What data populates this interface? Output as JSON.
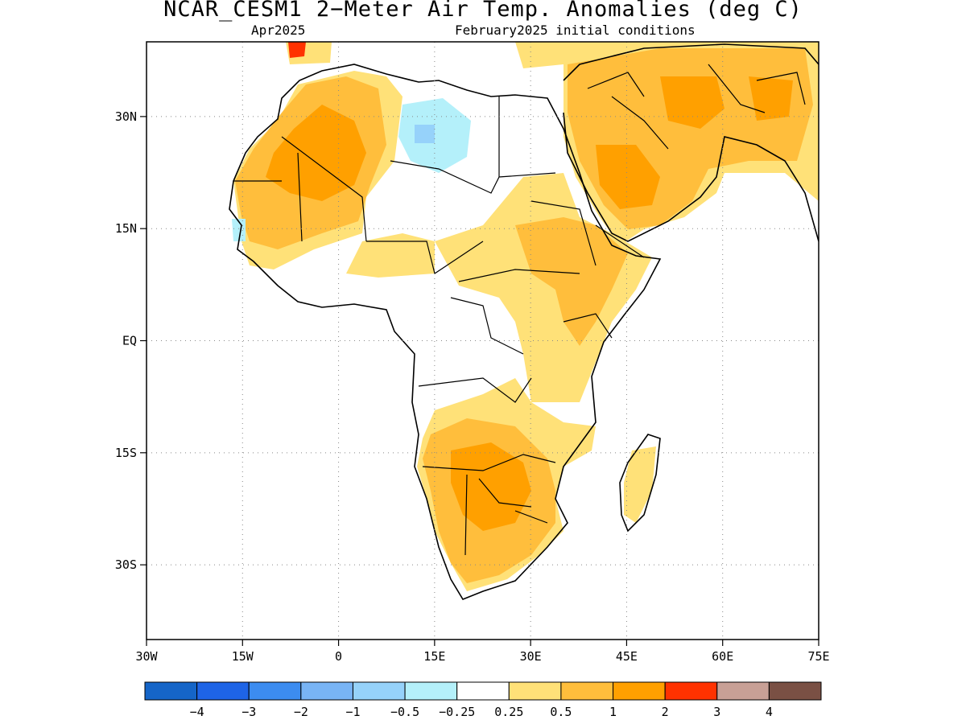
{
  "title": "NCAR_CESM1 2−Meter Air Temp. Anomalies (deg C)",
  "subtitle_left": "Apr2025",
  "subtitle_right": "February2025 initial conditions",
  "map": {
    "lon_range": [
      -30,
      75
    ],
    "lat_range": [
      -40,
      40
    ],
    "lat_ticks": [
      {
        "value": 30,
        "label": "30N"
      },
      {
        "value": 15,
        "label": "15N"
      },
      {
        "value": 0,
        "label": "EQ"
      },
      {
        "value": -15,
        "label": "15S"
      },
      {
        "value": -30,
        "label": "30S"
      }
    ],
    "lon_ticks": [
      {
        "value": -30,
        "label": "30W"
      },
      {
        "value": -15,
        "label": "15W"
      },
      {
        "value": 0,
        "label": "0"
      },
      {
        "value": 15,
        "label": "15E"
      },
      {
        "value": 30,
        "label": "30E"
      },
      {
        "value": 45,
        "label": "45E"
      },
      {
        "value": 60,
        "label": "60E"
      },
      {
        "value": 75,
        "label": "75E"
      }
    ],
    "gridlines": "dotted"
  },
  "colorbar": {
    "colors": [
      "#1565c8",
      "#1e64e6",
      "#3c8cf0",
      "#78b4f5",
      "#96d2fa",
      "#b4f0fa",
      "#ffffff",
      "#ffe178",
      "#ffbe3c",
      "#ffa000",
      "#ff3200",
      "#c8a096",
      "#7a5044"
    ],
    "labels": [
      "−4",
      "−3",
      "−2",
      "−1",
      "−0.5",
      "−0.25",
      "0.25",
      "0.5",
      "1",
      "2",
      "3",
      "4"
    ]
  }
}
